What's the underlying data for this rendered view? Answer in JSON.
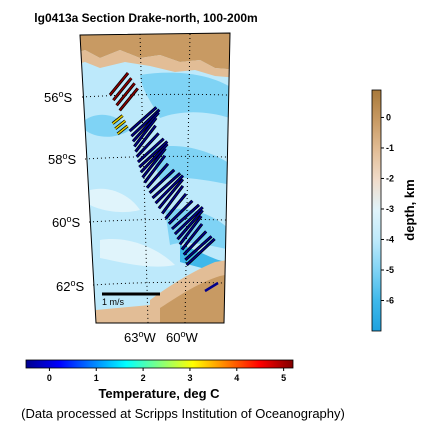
{
  "title": "lg0413a Section Drake-north, 100-200m",
  "map": {
    "lat_labels": [
      {
        "deg": "56",
        "hem": "S"
      },
      {
        "deg": "58",
        "hem": "S"
      },
      {
        "deg": "60",
        "hem": "S"
      },
      {
        "deg": "62",
        "hem": "S"
      }
    ],
    "lon_labels": [
      {
        "deg": "63",
        "hem": "W"
      },
      {
        "deg": "60",
        "hem": "W"
      }
    ],
    "deg_symbol": "o",
    "scale_label": "1 m/s",
    "vector_color_low": "#00008b",
    "vector_color_high": "#8b0000"
  },
  "depth_colorbar": {
    "label": "depth, km",
    "ticks": [
      "0",
      "-1",
      "-2",
      "-3",
      "-4",
      "-5",
      "-6"
    ],
    "range": [
      -7,
      0.9
    ],
    "colors": [
      "#1fa2df",
      "#3fb8ea",
      "#7fd3f5",
      "#bde9fb",
      "#e0f4fb",
      "#f0dccb",
      "#e2bd96",
      "#c89a63",
      "#a8793a"
    ]
  },
  "temp_colorbar": {
    "label": "Temperature, deg C",
    "ticks": [
      "0",
      "1",
      "2",
      "3",
      "4",
      "5"
    ],
    "range": [
      -0.5,
      5.2
    ],
    "colors": [
      "#00008f",
      "#0000ff",
      "#0080ff",
      "#00ffff",
      "#80ff80",
      "#ffff00",
      "#ff8000",
      "#ff0000",
      "#800000"
    ]
  },
  "credit": "(Data processed at Scripps Institution of Oceanography)"
}
